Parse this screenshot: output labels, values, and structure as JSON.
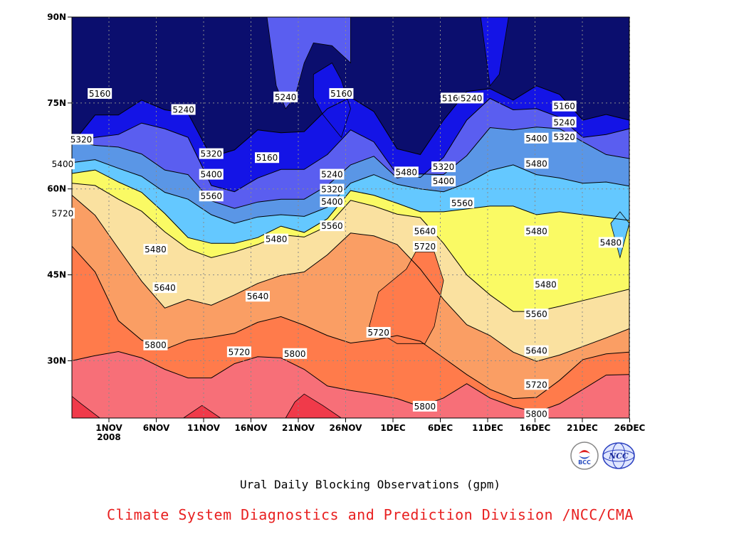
{
  "chart_data": {
    "type": "contour",
    "title": "Ural Daily Blocking Observations (gpm)",
    "xlabel": "",
    "ylabel": "",
    "x_ticks": [
      "1NOV",
      "6NOV",
      "11NOV",
      "16NOV",
      "21NOV",
      "26NOV",
      "1DEC",
      "6DEC",
      "11DEC",
      "16DEC",
      "21DEC",
      "26DEC"
    ],
    "x_tick_year": "2008",
    "y_ticks": [
      "90N",
      "75N",
      "60N",
      "45N",
      "30N"
    ],
    "y_tick_values": [
      90,
      75,
      60,
      45,
      30
    ],
    "x_range": [
      "2008-10-27",
      "2008-12-26"
    ],
    "y_range": [
      20,
      90
    ],
    "grid": true,
    "contour_levels": [
      5160,
      5240,
      5320,
      5400,
      5480,
      5560,
      5640,
      5720,
      5800
    ],
    "series": [
      {
        "label": "5160",
        "lat": [
          67.9,
          72.9,
          72.9,
          75.5,
          73.8,
          73.2,
          65.6,
          66.8,
          70.3,
          69.8,
          70.0,
          74.0,
          76.0,
          73.5,
          67.0,
          66.0,
          72.0,
          77.0,
          77.5,
          75.5,
          78.0,
          76.5,
          72.0,
          73.0,
          72.0
        ]
      },
      {
        "label": "5240",
        "lat": [
          67.9,
          69.0,
          69.5,
          71.5,
          70.5,
          69.0,
          60.6,
          59.5,
          61.9,
          63.4,
          63.4,
          66.0,
          70.3,
          68.2,
          62.5,
          62.0,
          65.5,
          72.0,
          75.8,
          73.8,
          74.0,
          72.5,
          69.0,
          69.5,
          70.5
        ]
      },
      {
        "label": "5320",
        "lat": [
          68.4,
          67.6,
          67.3,
          66.1,
          63.3,
          62.5,
          57.9,
          56.6,
          57.7,
          58.2,
          58.2,
          60.6,
          64.2,
          65.7,
          61.9,
          62.6,
          62.5,
          65.8,
          70.7,
          70.3,
          70.8,
          70.5,
          68.2,
          66.0,
          65.3
        ]
      },
      {
        "label": "5400",
        "lat": [
          64.6,
          65.1,
          63.6,
          62.2,
          59.4,
          58.2,
          55.5,
          54.0,
          55.1,
          55.5,
          55.2,
          56.8,
          61.0,
          62.5,
          60.8,
          60.0,
          59.5,
          61.0,
          63.2,
          64.2,
          62.5,
          61.9,
          61.0,
          61.2,
          60.5
        ]
      },
      {
        "label": "5480",
        "lat": [
          62.7,
          63.3,
          61.2,
          59.4,
          55.7,
          51.5,
          50.5,
          50.5,
          51.5,
          53.5,
          52.4,
          54.8,
          59.7,
          58.9,
          57.5,
          56.0,
          56.0,
          56.5,
          57.0,
          57.0,
          55.5,
          56.0,
          55.5,
          55.0,
          54.5
        ]
      },
      {
        "label": "5560",
        "lat": [
          61.0,
          60.6,
          58.2,
          56.1,
          52.5,
          49.5,
          48.0,
          49.0,
          50.3,
          52.0,
          51.6,
          53.5,
          58.0,
          57.0,
          55.6,
          55.0,
          50.5,
          45.0,
          41.5,
          38.6,
          38.6,
          39.5,
          40.5,
          41.5,
          42.5
        ]
      },
      {
        "label": "5640",
        "lat": [
          58.9,
          55.4,
          49.6,
          43.9,
          39.2,
          40.7,
          39.7,
          41.5,
          43.5,
          44.9,
          45.5,
          48.5,
          52.3,
          51.8,
          50.3,
          46.0,
          40.7,
          36.3,
          34.4,
          31.5,
          29.9,
          31.0,
          32.5,
          34.0,
          35.6
        ]
      },
      {
        "label": "5720",
        "lat": [
          50.0,
          45.5,
          37.0,
          33.6,
          32.0,
          33.6,
          34.1,
          34.8,
          36.7,
          37.7,
          36.2,
          34.4,
          33.1,
          33.6,
          34.4,
          33.4,
          30.5,
          27.6,
          25.0,
          23.4,
          23.6,
          26.6,
          30.2,
          31.2,
          31.5
        ]
      },
      {
        "label": "5800",
        "lat": [
          30.0,
          30.9,
          31.6,
          30.5,
          28.5,
          27.0,
          27.0,
          29.5,
          30.7,
          30.5,
          28.5,
          25.6,
          24.8,
          24.2,
          23.4,
          22.0,
          23.5,
          26.0,
          23.5,
          22.0,
          21.0,
          22.5,
          25.0,
          27.5,
          27.6
        ]
      }
    ],
    "contour_labels": [
      {
        "text": "5160",
        "date": "2008-10-30",
        "lat": 76.6
      },
      {
        "text": "5240",
        "date": "2008-11-08",
        "lat": 73.8
      },
      {
        "text": "5240",
        "date": "2008-11-19",
        "lat": 76.0
      },
      {
        "text": "5160",
        "date": "2008-11-25",
        "lat": 76.6
      },
      {
        "text": "5160",
        "date": "2008-12-07",
        "lat": 75.8
      },
      {
        "text": "5240",
        "date": "2008-12-09",
        "lat": 75.8
      },
      {
        "text": "5160",
        "date": "2008-12-19",
        "lat": 74.4
      },
      {
        "text": "5240",
        "date": "2008-12-19",
        "lat": 71.6
      },
      {
        "text": "5320",
        "date": "2008-12-19",
        "lat": 69.0
      },
      {
        "text": "5320",
        "date": "2008-10-28",
        "lat": 68.6
      },
      {
        "text": "5320",
        "date": "2008-11-11",
        "lat": 66.1
      },
      {
        "text": "5160",
        "date": "2008-11-17",
        "lat": 65.4
      },
      {
        "text": "5400",
        "date": "2008-12-16",
        "lat": 68.8
      },
      {
        "text": "5400",
        "date": "2008-10-26",
        "lat": 64.3
      },
      {
        "text": "5480",
        "date": "2008-12-16",
        "lat": 64.4
      },
      {
        "text": "5320",
        "date": "2008-12-06",
        "lat": 63.8
      },
      {
        "text": "5240",
        "date": "2008-11-24",
        "lat": 62.5
      },
      {
        "text": "5480",
        "date": "2008-12-02",
        "lat": 62.9
      },
      {
        "text": "5400",
        "date": "2008-11-11",
        "lat": 62.5
      },
      {
        "text": "5400",
        "date": "2008-12-06",
        "lat": 61.3
      },
      {
        "text": "5320",
        "date": "2008-11-24",
        "lat": 59.9
      },
      {
        "text": "5400",
        "date": "2008-11-24",
        "lat": 57.7
      },
      {
        "text": "5560",
        "date": "2008-11-11",
        "lat": 58.7
      },
      {
        "text": "5560",
        "date": "2008-12-08",
        "lat": 57.5
      },
      {
        "text": "5720",
        "date": "2008-10-26",
        "lat": 55.7
      },
      {
        "text": "5640",
        "date": "2008-12-04",
        "lat": 52.6
      },
      {
        "text": "5560",
        "date": "2008-11-24",
        "lat": 53.5
      },
      {
        "text": "5480",
        "date": "2008-11-18",
        "lat": 51.2
      },
      {
        "text": "5720",
        "date": "2008-12-04",
        "lat": 49.9
      },
      {
        "text": "5480",
        "date": "2008-11-05",
        "lat": 49.4
      },
      {
        "text": "5480",
        "date": "2008-12-16",
        "lat": 52.6
      },
      {
        "text": "5480",
        "date": "2008-12-24",
        "lat": 50.6
      },
      {
        "text": "5640",
        "date": "2008-11-06",
        "lat": 42.7
      },
      {
        "text": "5480",
        "date": "2008-12-17",
        "lat": 43.3
      },
      {
        "text": "5640",
        "date": "2008-11-16",
        "lat": 41.2
      },
      {
        "text": "5560",
        "date": "2008-12-16",
        "lat": 38.1
      },
      {
        "text": "5720",
        "date": "2008-11-29",
        "lat": 34.9
      },
      {
        "text": "5800",
        "date": "2008-11-05",
        "lat": 32.7
      },
      {
        "text": "5720",
        "date": "2008-11-14",
        "lat": 31.5
      },
      {
        "text": "5640",
        "date": "2008-12-16",
        "lat": 31.7
      },
      {
        "text": "5800",
        "date": "2008-11-20",
        "lat": 31.2
      },
      {
        "text": "5720",
        "date": "2008-12-16",
        "lat": 25.8
      },
      {
        "text": "5800",
        "date": "2008-12-04",
        "lat": 22.0
      },
      {
        "text": "5800",
        "date": "2008-12-16",
        "lat": 20.7
      }
    ],
    "blobs": [
      {
        "fill": "#5a5ef0",
        "pts": [
          [
            "2008-11-17",
            90
          ],
          [
            "2008-11-26",
            90
          ],
          [
            "2008-11-26",
            82
          ],
          [
            "2008-11-24",
            85
          ],
          [
            "2008-11-22",
            85.5
          ],
          [
            "2008-11-21",
            82
          ],
          [
            "2008-11-20",
            76
          ],
          [
            "2008-11-19",
            74
          ],
          [
            "2008-11-18",
            78
          ]
        ]
      },
      {
        "fill": "#1414e6",
        "pts": [
          [
            "2008-11-22",
            80
          ],
          [
            "2008-11-24",
            82
          ],
          [
            "2008-11-25",
            79
          ],
          [
            "2008-11-26",
            74
          ],
          [
            "2008-11-25",
            69
          ],
          [
            "2008-11-23",
            73
          ],
          [
            "2008-11-22",
            76
          ]
        ]
      },
      {
        "fill": "#1414e6",
        "pts": [
          [
            "2008-12-10",
            90
          ],
          [
            "2008-12-13",
            90
          ],
          [
            "2008-12-12",
            80
          ],
          [
            "2008-12-11",
            78
          ]
        ]
      },
      {
        "fill": "#64c8ff",
        "pts": [
          [
            "2008-12-25",
            56
          ],
          [
            "2008-12-26",
            54
          ],
          [
            "2008-12-25",
            48
          ],
          [
            "2008-12-24",
            54
          ]
        ]
      },
      {
        "fill": "#ff7b4b",
        "pts": [
          [
            "2008-11-28",
            36
          ],
          [
            "2008-11-29",
            42
          ],
          [
            "2008-12-02",
            46
          ],
          [
            "2008-12-03",
            49
          ],
          [
            "2008-12-05",
            49
          ],
          [
            "2008-12-06",
            44
          ],
          [
            "2008-12-05",
            36
          ],
          [
            "2008-12-04",
            33
          ],
          [
            "2008-12-01",
            33
          ]
        ]
      },
      {
        "fill": "#f03a4a",
        "pts": [
          [
            "2008-10-27",
            23.8
          ],
          [
            "2008-10-28",
            22.5
          ],
          [
            "2008-10-30",
            20
          ],
          [
            "2008-10-27",
            20
          ]
        ]
      },
      {
        "fill": "#f03a4a",
        "pts": [
          [
            "2008-11-08",
            20
          ],
          [
            "2008-11-10",
            22.2
          ],
          [
            "2008-11-12",
            20
          ]
        ]
      },
      {
        "fill": "#f03a4a",
        "pts": [
          [
            "2008-11-19",
            20
          ],
          [
            "2008-11-20",
            22.8
          ],
          [
            "2008-11-21",
            24.2
          ],
          [
            "2008-11-23",
            22.2
          ],
          [
            "2008-11-25",
            20
          ]
        ]
      }
    ],
    "colors": {
      "below_5160": "#0b0e6e",
      "5160_5240": "#1414e6",
      "5240_5320": "#5a5ef0",
      "5320_5400": "#5a96e6",
      "5400_5480": "#64c8ff",
      "5480_5560": "#fafa64",
      "5560_5640": "#fae1a0",
      "5640_5720": "#fa9e64",
      "5720_5800": "#ff7b4b",
      "5800_5880": "#f76f78",
      "above_5880": "#f03a4a"
    }
  },
  "credit": "Climate System Diagnostics and Prediction Division /NCC/CMA",
  "credit_color": "#e82020",
  "logos": [
    {
      "name": "bcc-logo",
      "text": "BCC"
    },
    {
      "name": "ncc-logo",
      "text": "NCC"
    }
  ]
}
